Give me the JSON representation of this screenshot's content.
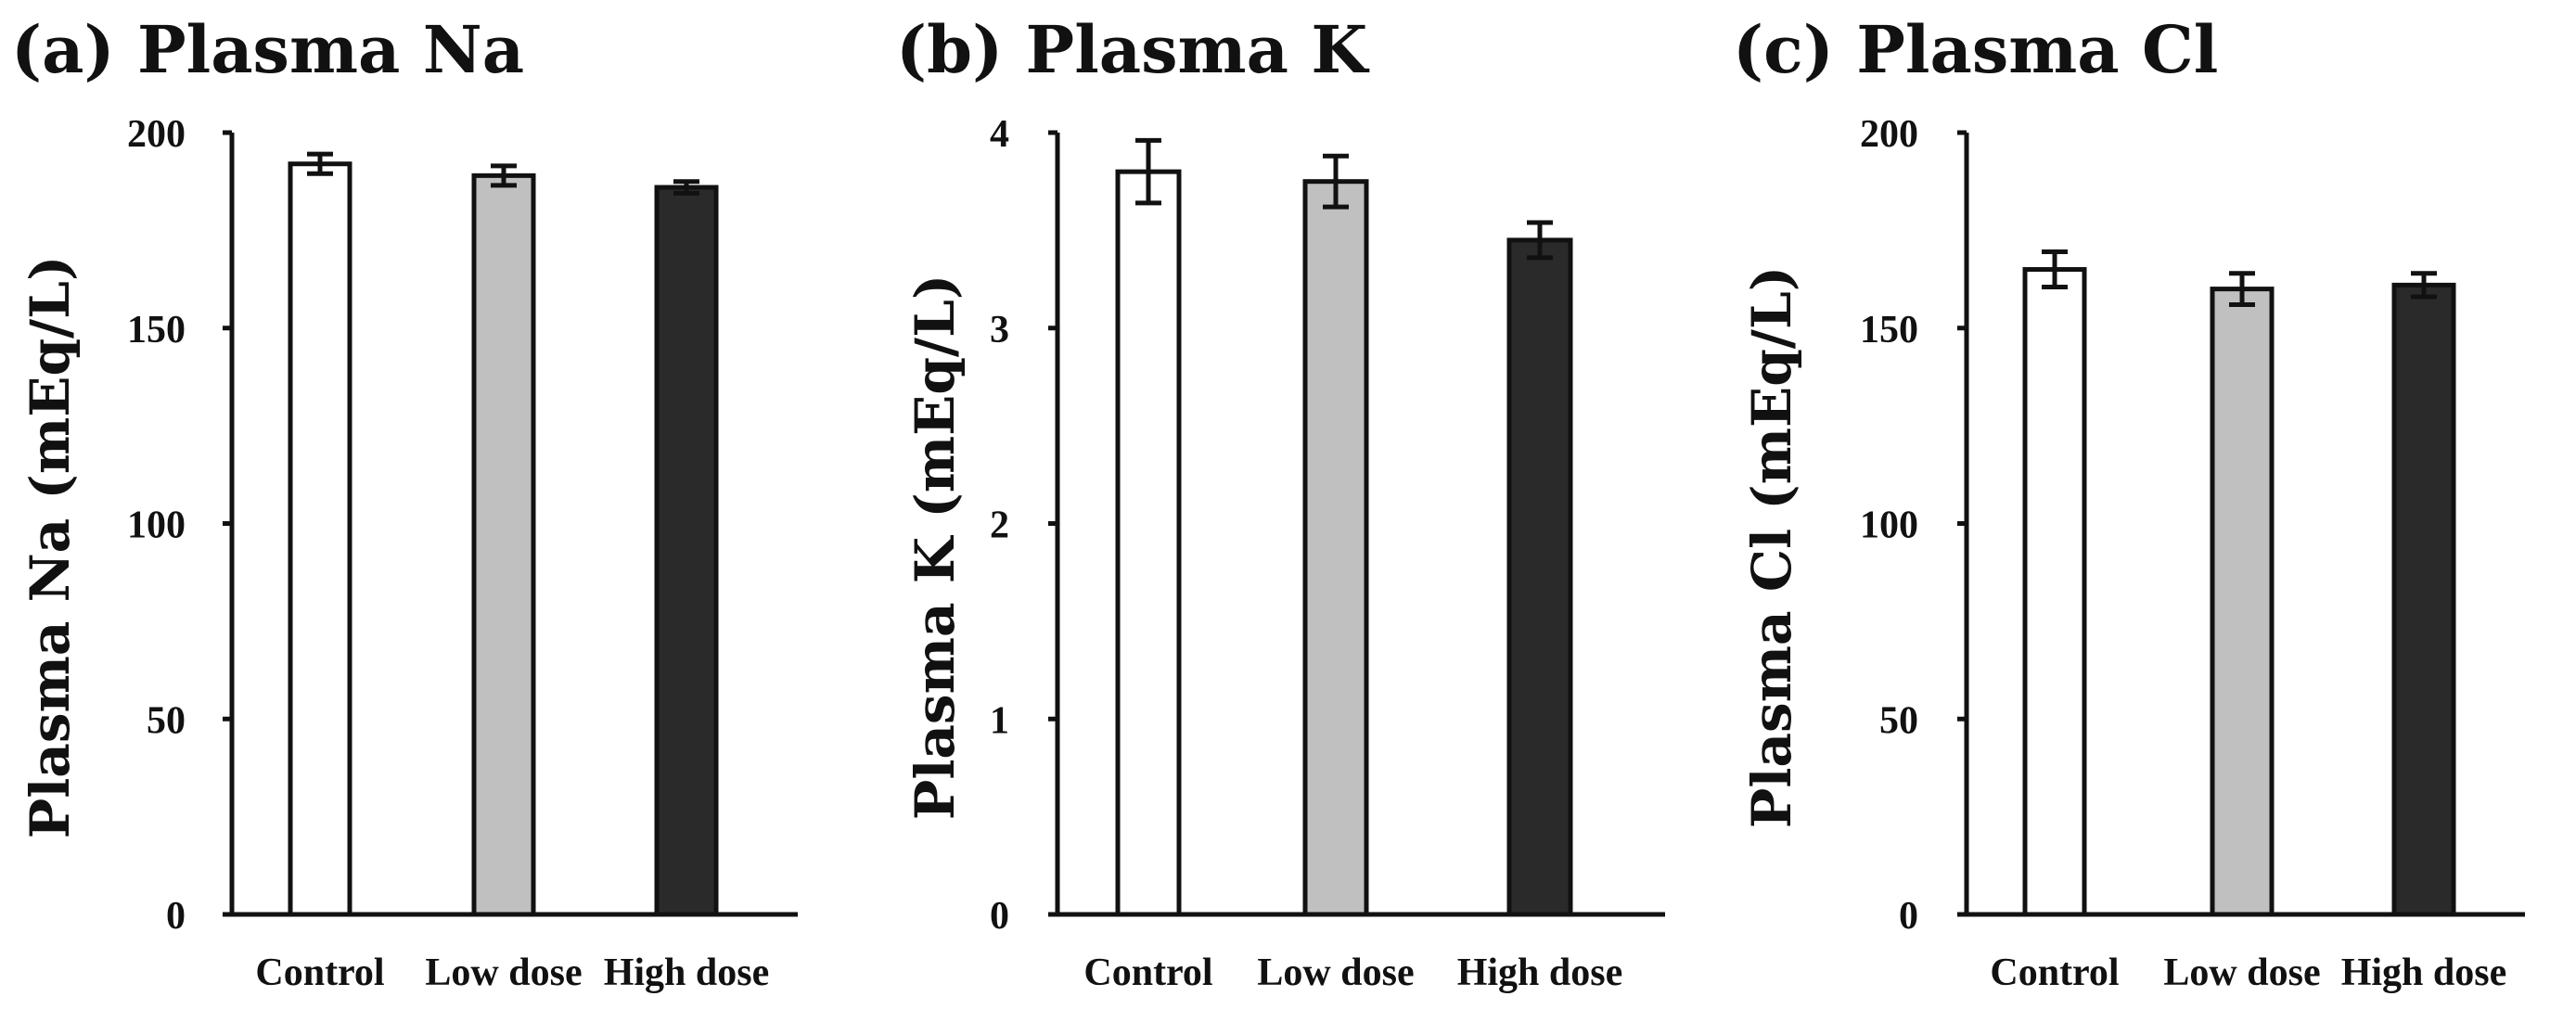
{
  "colors": {
    "ink": "#111111",
    "control_fill": "#ffffff",
    "low_dose_fill": "#c0c0c0",
    "high_dose_fill": "#2a2a2a"
  },
  "chart_data": [
    {
      "type": "bar",
      "title": "(a) Plasma Na",
      "xlabel": "",
      "ylabel": "Plasma Na (mEq/L)",
      "categories": [
        "Control",
        "Low dose",
        "High dose"
      ],
      "values": [
        192,
        189,
        186
      ],
      "errors": [
        2.5,
        2.5,
        1.5
      ],
      "ylim": [
        0,
        200
      ],
      "yticks": [
        0,
        50,
        100,
        150,
        200
      ],
      "ytick_labels": [
        "0",
        "50",
        "100",
        "150",
        "200"
      ],
      "bar_colors": [
        "#ffffff",
        "#c0c0c0",
        "#2a2a2a"
      ]
    },
    {
      "type": "bar",
      "title": "(b) Plasma K",
      "xlabel": "",
      "ylabel": "Plasma K (mEq/L)",
      "categories": [
        "Control",
        "Low dose",
        "High dose"
      ],
      "values": [
        3.8,
        3.75,
        3.45
      ],
      "errors": [
        0.16,
        0.13,
        0.09
      ],
      "ylim": [
        0,
        4
      ],
      "yticks": [
        0,
        1,
        2,
        3,
        4
      ],
      "ytick_labels": [
        "0",
        "1",
        "2",
        "3",
        "4"
      ],
      "bar_colors": [
        "#ffffff",
        "#c0c0c0",
        "#2a2a2a"
      ]
    },
    {
      "type": "bar",
      "title": "(c) Plasma Cl",
      "xlabel": "",
      "ylabel": "Plasma Cl (mEq/L)",
      "categories": [
        "Control",
        "Low dose",
        "High dose"
      ],
      "values": [
        165,
        160,
        161
      ],
      "errors": [
        4.5,
        4,
        3
      ],
      "ylim": [
        0,
        200
      ],
      "yticks": [
        0,
        50,
        100,
        150,
        200
      ],
      "ytick_labels": [
        "0",
        "50",
        "100",
        "150",
        "200"
      ],
      "bar_colors": [
        "#ffffff",
        "#c0c0c0",
        "#2a2a2a"
      ]
    }
  ]
}
